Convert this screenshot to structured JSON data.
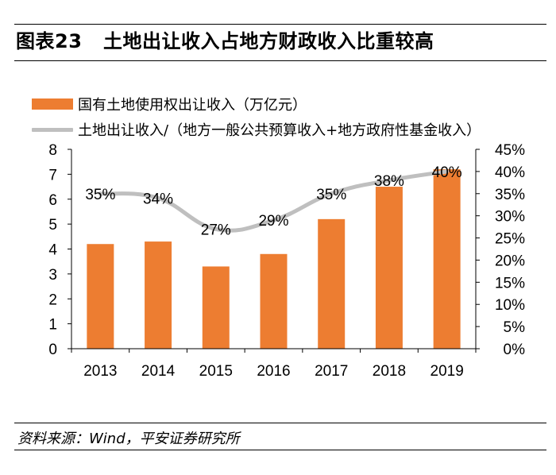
{
  "header": {
    "figure_number": "图表23",
    "title": "土地出让收入占地方财政收入比重较高"
  },
  "legend": {
    "bar_label": "国有土地使用权出让收入（万亿元）",
    "line_label": "土地出让收入/（地方一般公共预算收入+地方政府性基金收入）"
  },
  "footer": {
    "source": "资料来源：Wind，平安证券研究所"
  },
  "colors": {
    "bar": "#ED7D31",
    "line": "#BFBFBF",
    "axis": "#000000"
  },
  "chart_data": {
    "type": "bar",
    "title": "土地出让收入占地方财政收入比重较高",
    "categories": [
      "2013",
      "2014",
      "2015",
      "2016",
      "2017",
      "2018",
      "2019"
    ],
    "series": [
      {
        "name": "国有土地使用权出让收入（万亿元）",
        "type": "bar",
        "axis": "left",
        "values": [
          4.2,
          4.3,
          3.3,
          3.8,
          5.2,
          6.5,
          7.2
        ]
      },
      {
        "name": "土地出让收入/（地方一般公共预算收入+地方政府性基金收入）",
        "type": "line",
        "axis": "right",
        "values": [
          35,
          34,
          27,
          29,
          35,
          38,
          40
        ],
        "data_labels": [
          "35%",
          "34%",
          "27%",
          "29%",
          "35%",
          "38%",
          "40%"
        ]
      }
    ],
    "y_left": {
      "min": 0,
      "max": 8,
      "ticks": [
        0,
        1,
        2,
        3,
        4,
        5,
        6,
        7,
        8
      ]
    },
    "y_right": {
      "min": 0,
      "max": 45,
      "ticks": [
        0,
        5,
        10,
        15,
        20,
        25,
        30,
        35,
        40,
        45
      ],
      "tick_labels": [
        "0%",
        "5%",
        "10%",
        "15%",
        "20%",
        "25%",
        "30%",
        "35%",
        "40%",
        "45%"
      ]
    },
    "xlabel": "",
    "ylabel": "",
    "grid": false,
    "legend_position": "top-left"
  }
}
